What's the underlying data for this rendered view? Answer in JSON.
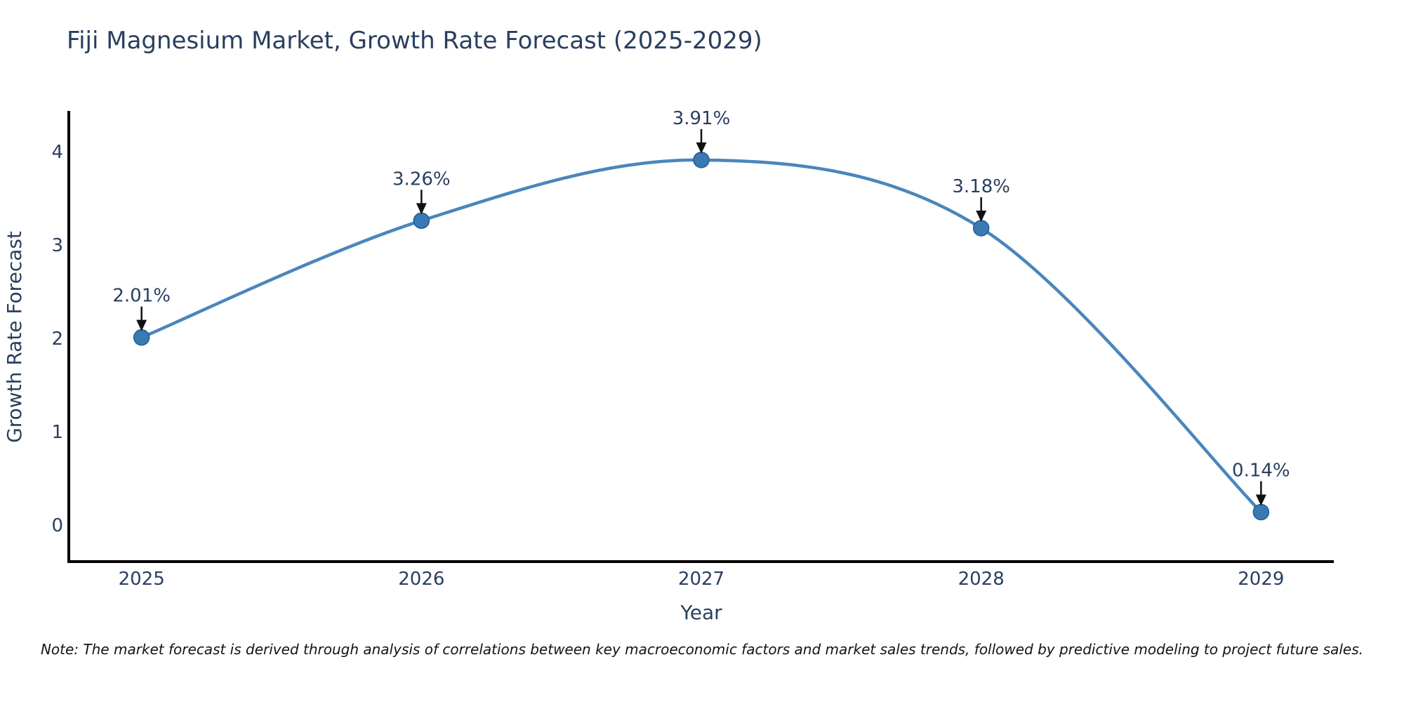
{
  "chart": {
    "title": "Fiji Magnesium Market, Growth Rate Forecast (2025-2029)"
  },
  "chart_data": {
    "type": "line",
    "line_shape": "spline",
    "x": [
      2025,
      2026,
      2027,
      2028,
      2029
    ],
    "values": [
      2.01,
      3.26,
      3.91,
      3.18,
      0.14
    ],
    "point_labels": [
      "2.01%",
      "3.26%",
      "3.91%",
      "3.18%",
      "0.14%"
    ],
    "x_ticks": [
      "2025",
      "2026",
      "2027",
      "2028",
      "2029"
    ],
    "y_ticks": [
      "0",
      "1",
      "2",
      "3",
      "4"
    ],
    "xlabel": "Year",
    "ylabel": "Growth Rate Forecast",
    "xlim": [
      2024.74,
      2029.26
    ],
    "ylim": [
      -0.39,
      4.42
    ],
    "grid": false,
    "legend": "none",
    "colors": {
      "line": "#4a86bb",
      "marker": "#3a79b3",
      "marker_edge": "#1f5f94",
      "axis": "#000000",
      "text": "#2a3f5f",
      "arrow": "#111111"
    }
  },
  "note": "Note: The market forecast is derived through analysis of correlations between key macroeconomic factors and market sales trends, followed by predictive modeling to project future sales."
}
